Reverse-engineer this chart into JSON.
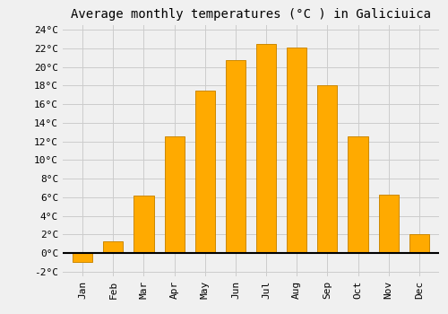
{
  "title": "Average monthly temperatures (°C ) in Galiciuica",
  "months": [
    "Jan",
    "Feb",
    "Mar",
    "Apr",
    "May",
    "Jun",
    "Jul",
    "Aug",
    "Sep",
    "Oct",
    "Nov",
    "Dec"
  ],
  "values": [
    -1.0,
    1.3,
    6.2,
    12.5,
    17.5,
    20.7,
    22.5,
    22.1,
    18.0,
    12.5,
    6.3,
    2.0
  ],
  "bar_color": "#FFAA00",
  "bar_edge_color": "#CC8800",
  "background_color": "#F0F0F0",
  "grid_color": "#CCCCCC",
  "ylim_min": -2.5,
  "ylim_max": 24.5,
  "yticks": [
    -2,
    0,
    2,
    4,
    6,
    8,
    10,
    12,
    14,
    16,
    18,
    20,
    22,
    24
  ],
  "title_fontsize": 10,
  "tick_fontsize": 8,
  "bar_width": 0.65
}
